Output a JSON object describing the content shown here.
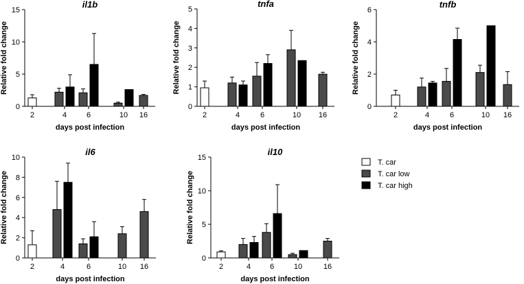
{
  "colors": {
    "T. car": "#ffffff",
    "T. car low": "#4a4a4a",
    "T. car high": "#000000"
  },
  "legend": {
    "placement": "right",
    "entries": [
      "T. car",
      "T. car low",
      "T. car high"
    ]
  },
  "chart_data": [
    {
      "type": "bar",
      "title": "il1b",
      "xlabel": "days post infection",
      "ylabel": "Relative fold change",
      "categories": [
        "2",
        "4",
        "6",
        "10",
        "16"
      ],
      "ylim": [
        0,
        15
      ],
      "yticks": [
        0,
        5,
        10,
        15
      ],
      "series": [
        {
          "name": "T. car",
          "values": [
            1.3,
            null,
            null,
            null,
            null
          ],
          "errors": [
            0.5,
            null,
            null,
            null,
            null
          ]
        },
        {
          "name": "T. car low",
          "values": [
            null,
            2.2,
            2.1,
            0.5,
            1.7
          ],
          "errors": [
            null,
            0.6,
            0.6,
            0.15,
            0.15
          ]
        },
        {
          "name": "T. car high",
          "values": [
            null,
            3.0,
            6.5,
            2.6,
            null
          ],
          "errors": [
            null,
            1.9,
            4.8,
            0.0,
            null
          ]
        }
      ]
    },
    {
      "type": "bar",
      "title": "tnfa",
      "xlabel": "days post infection",
      "ylabel": "Relative fold change",
      "categories": [
        "2",
        "4",
        "6",
        "10",
        "16"
      ],
      "ylim": [
        0,
        5
      ],
      "yticks": [
        0,
        1,
        2,
        3,
        4,
        5
      ],
      "series": [
        {
          "name": "T. car",
          "values": [
            0.95,
            null,
            null,
            null,
            null
          ],
          "errors": [
            0.35,
            null,
            null,
            null,
            null
          ]
        },
        {
          "name": "T. car low",
          "values": [
            null,
            1.2,
            1.55,
            2.9,
            1.65
          ],
          "errors": [
            null,
            0.3,
            0.7,
            1.0,
            0.1
          ]
        },
        {
          "name": "T. car high",
          "values": [
            null,
            1.1,
            2.2,
            2.35,
            null
          ],
          "errors": [
            null,
            0.2,
            0.45,
            0.0,
            null
          ]
        }
      ]
    },
    {
      "type": "bar",
      "title": "tnfb",
      "xlabel": "days post infection",
      "ylabel": "Relative fold change",
      "categories": [
        "2",
        "4",
        "6",
        "10",
        "16"
      ],
      "ylim": [
        0,
        6
      ],
      "yticks": [
        0,
        2,
        4,
        6
      ],
      "series": [
        {
          "name": "T. car",
          "values": [
            0.7,
            null,
            null,
            null,
            null
          ],
          "errors": [
            0.3,
            null,
            null,
            null,
            null
          ]
        },
        {
          "name": "T. car low",
          "values": [
            null,
            1.2,
            1.55,
            2.1,
            1.35
          ],
          "errors": [
            null,
            0.55,
            0.8,
            0.45,
            0.8
          ]
        },
        {
          "name": "T. car high",
          "values": [
            null,
            1.45,
            4.15,
            5.0,
            null
          ],
          "errors": [
            null,
            0.1,
            0.7,
            0.0,
            null
          ]
        }
      ]
    },
    {
      "type": "bar",
      "title": "il6",
      "xlabel": "days post infection",
      "ylabel": "Relative fold change",
      "categories": [
        "2",
        "4",
        "6",
        "10",
        "16"
      ],
      "ylim": [
        0,
        10
      ],
      "yticks": [
        0,
        2,
        4,
        6,
        8,
        10
      ],
      "series": [
        {
          "name": "T. car",
          "values": [
            1.3,
            null,
            null,
            null,
            null
          ],
          "errors": [
            1.4,
            null,
            null,
            null,
            null
          ]
        },
        {
          "name": "T. car low",
          "values": [
            null,
            4.8,
            1.4,
            2.4,
            4.6
          ],
          "errors": [
            null,
            2.8,
            0.5,
            0.7,
            1.2
          ]
        },
        {
          "name": "T. car high",
          "values": [
            null,
            7.5,
            2.1,
            null,
            null
          ],
          "errors": [
            null,
            1.9,
            1.5,
            null,
            null
          ]
        }
      ]
    },
    {
      "type": "bar",
      "title": "il10",
      "xlabel": "days post infection",
      "ylabel": "Relative fold change",
      "categories": [
        "2",
        "4",
        "6",
        "10",
        "16"
      ],
      "ylim": [
        0,
        15
      ],
      "yticks": [
        0,
        5,
        10,
        15
      ],
      "series": [
        {
          "name": "T. car",
          "values": [
            0.9,
            null,
            null,
            null,
            null
          ],
          "errors": [
            0.15,
            null,
            null,
            null,
            null
          ]
        },
        {
          "name": "T. car low",
          "values": [
            null,
            2.0,
            3.8,
            0.5,
            2.5
          ],
          "errors": [
            null,
            0.9,
            1.3,
            0.2,
            0.4
          ]
        },
        {
          "name": "T. car high",
          "values": [
            null,
            2.3,
            6.6,
            1.1,
            null
          ],
          "errors": [
            null,
            0.9,
            4.3,
            0.0,
            null
          ]
        }
      ]
    }
  ]
}
